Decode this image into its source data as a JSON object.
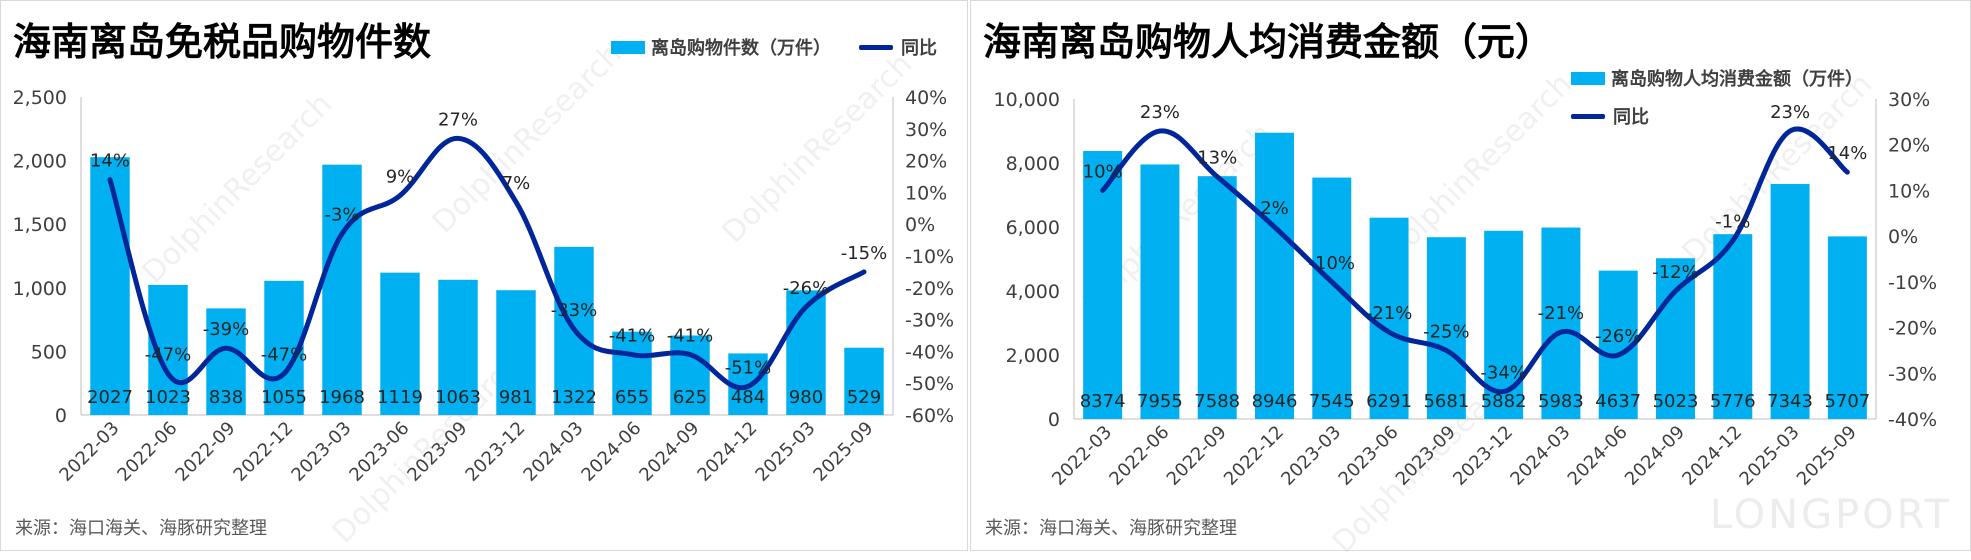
{
  "colors": {
    "bar": "#00B0F0",
    "line": "#002699",
    "axis": "#595959",
    "grid": "#d9d9d9"
  },
  "watermark": "DolphinResearch",
  "brand": "LONGPORT",
  "chart_data": [
    {
      "type": "bar",
      "title": "海南离岛免税品购物件数",
      "source": "来源：海口海关、海豚研究整理",
      "legend_placement": "top-right",
      "categories": [
        "2022-03",
        "2022-06",
        "2022-09",
        "2022-12",
        "2023-03",
        "2023-06",
        "2023-09",
        "2023-12",
        "2024-03",
        "2024-06",
        "2024-09",
        "2024-12",
        "2025-03",
        "2025-09"
      ],
      "series": [
        {
          "name": "离岛购物件数（万件）",
          "type": "bar",
          "axis": "left",
          "values": [
            2027,
            1023,
            838,
            1055,
            1968,
            1119,
            1063,
            981,
            1322,
            655,
            625,
            484,
            980,
            529
          ],
          "labels": [
            "2027",
            "1023",
            "838",
            "1055",
            "1968",
            "1119",
            "1063",
            "981",
            "1322",
            "655",
            "625",
            "484",
            "980",
            "529"
          ]
        },
        {
          "name": "同比",
          "type": "line",
          "axis": "right",
          "values": [
            14,
            -47,
            -39,
            -47,
            -3,
            9,
            27,
            7,
            -33,
            -41,
            -41,
            -51,
            -26,
            -15
          ],
          "labels": [
            "14%",
            "-47%",
            "-39%",
            "-47%",
            "-3%",
            "9%",
            "27%",
            "7%",
            "-33%",
            "-41%",
            "-41%",
            "-51%",
            "-26%",
            "-15%"
          ]
        }
      ],
      "ylim": [
        0,
        2500
      ],
      "yticks": [
        0,
        500,
        1000,
        1500,
        2000,
        2500
      ],
      "ytick_labels": [
        "0",
        "500",
        "1,000",
        "1,500",
        "2,000",
        "2,500"
      ],
      "y2lim": [
        -60,
        40
      ],
      "y2ticks": [
        -60,
        -50,
        -40,
        -30,
        -20,
        -10,
        0,
        10,
        20,
        30,
        40
      ],
      "y2tick_labels": [
        "-60%",
        "-50%",
        "-40%",
        "-30%",
        "-20%",
        "-10%",
        "0%",
        "10%",
        "20%",
        "30%",
        "40%"
      ],
      "grid": false
    },
    {
      "type": "bar",
      "title": "海南离岛购物人均消费金额（元）",
      "source": "来源：海口海关、海豚研究整理",
      "legend_placement": "top-right",
      "categories": [
        "2022-03",
        "2022-06",
        "2022-09",
        "2022-12",
        "2023-03",
        "2023-06",
        "2023-09",
        "2023-12",
        "2024-03",
        "2024-06",
        "2024-09",
        "2024-12",
        "2025-03",
        "2025-09"
      ],
      "series": [
        {
          "name": "离岛购物人均消费金额（万件）",
          "type": "bar",
          "axis": "left",
          "values": [
            8374,
            7955,
            7588,
            8946,
            7545,
            6291,
            5681,
            5882,
            5983,
            4637,
            5023,
            5776,
            7343,
            5707
          ],
          "labels": [
            "8374",
            "7955",
            "7588",
            "8946",
            "7545",
            "6291",
            "5681",
            "5882",
            "5983",
            "4637",
            "5023",
            "5776",
            "7343",
            "5707"
          ]
        },
        {
          "name": "同比",
          "type": "line",
          "axis": "right",
          "values": [
            10,
            23,
            13,
            2,
            -10,
            -21,
            -25,
            -34,
            -21,
            -26,
            -12,
            -1,
            23,
            14
          ],
          "labels": [
            "10%",
            "23%",
            "13%",
            "2%",
            "-10%",
            "-21%",
            "-25%",
            "-34%",
            "-21%",
            "-26%",
            "-12%",
            "-1%",
            "23%",
            "14%"
          ]
        }
      ],
      "ylim": [
        0,
        10000
      ],
      "yticks": [
        0,
        2000,
        4000,
        6000,
        8000,
        10000
      ],
      "ytick_labels": [
        "0",
        "2,000",
        "4,000",
        "6,000",
        "8,000",
        "10,000"
      ],
      "y2lim": [
        -40,
        30
      ],
      "y2ticks": [
        -40,
        -30,
        -20,
        -10,
        0,
        10,
        20,
        30
      ],
      "y2tick_labels": [
        "-40%",
        "-30%",
        "-20%",
        "-10%",
        "0%",
        "10%",
        "20%",
        "30%"
      ],
      "grid": false
    }
  ]
}
